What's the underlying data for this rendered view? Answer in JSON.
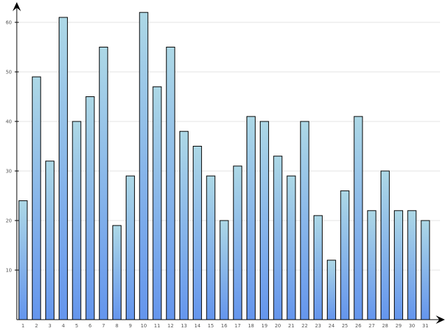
{
  "chart_data": {
    "type": "bar",
    "title": "",
    "xlabel": "",
    "ylabel": "",
    "categories": [
      "1",
      "2",
      "3",
      "4",
      "5",
      "6",
      "7",
      "8",
      "9",
      "10",
      "11",
      "12",
      "13",
      "14",
      "15",
      "16",
      "17",
      "18",
      "19",
      "20",
      "21",
      "22",
      "23",
      "24",
      "25",
      "26",
      "27",
      "28",
      "29",
      "30",
      "31"
    ],
    "values": [
      24,
      49,
      32,
      61,
      40,
      45,
      55,
      19,
      29,
      62,
      47,
      55,
      38,
      35,
      29,
      20,
      31,
      41,
      40,
      33,
      29,
      40,
      21,
      12,
      26,
      41,
      22,
      30,
      22,
      22,
      20
    ],
    "ylim": [
      0,
      64.7
    ],
    "yticks": [
      "10",
      "20",
      "30",
      "40",
      "50",
      "60"
    ],
    "grid": true,
    "legend": "none",
    "colors": {
      "bar_top": "#ADD8E6",
      "bar_bottom": "#6495ED",
      "bar_stroke": "#000000",
      "grid": "#E3E3E3",
      "axis": "#000000",
      "tick_text": "#555555"
    }
  }
}
